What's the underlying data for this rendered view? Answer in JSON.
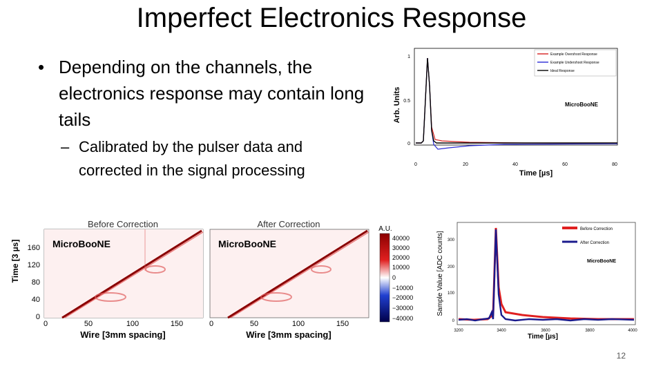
{
  "slide": {
    "title": "Imperfect Electronics Response",
    "bullet1": "Depending on the channels, the electronics response may contain long tails",
    "bullet1_marker": "•",
    "bullet2": "Calibrated by the pulser data and corrected in the signal processing",
    "bullet2_marker": "–",
    "page_number": "12"
  },
  "response_plot": {
    "ylabel": "Arb. Units",
    "xlabel": "Time [µs]",
    "watermark": "MicroBooNE",
    "x_ticks": [
      "0",
      "20",
      "40",
      "60",
      "80"
    ],
    "y_ticks": [
      "0",
      "0.5",
      "1"
    ],
    "legend": [
      "Example Overshoot Response",
      "Example Undershoot Response",
      "Ideal Response"
    ],
    "colors": {
      "overshoot": "#d62020",
      "undershoot": "#2a2ad6",
      "ideal": "#000000"
    }
  },
  "wire_plots": {
    "left_title": "Before Correction",
    "right_title": "After Correction",
    "watermark": "MicroBooNE",
    "ylabel": "Time [3 µs]",
    "xlabel": "Wire [3mm spacing]",
    "x_ticks": [
      "0",
      "50",
      "100",
      "150"
    ],
    "y_ticks": [
      "0",
      "40",
      "80",
      "120",
      "160"
    ],
    "colorbar_title": "A.U.",
    "colorbar_ticks": [
      "40000",
      "30000",
      "20000",
      "10000",
      "0",
      "−10000",
      "−20000",
      "−30000",
      "−40000"
    ]
  },
  "adc_plot": {
    "ylabel": "Sample Value [ADC counts]",
    "xlabel": "Time [µs]",
    "watermark": "MicroBooNE",
    "x_ticks": [
      "3200",
      "3400",
      "3600",
      "3800",
      "4000"
    ],
    "y_ticks": [
      "0",
      "100",
      "200",
      "300"
    ],
    "legend": [
      "Before Correction",
      "After Correction"
    ],
    "colors": {
      "before": "#e02020",
      "after": "#1a1a8c"
    }
  }
}
